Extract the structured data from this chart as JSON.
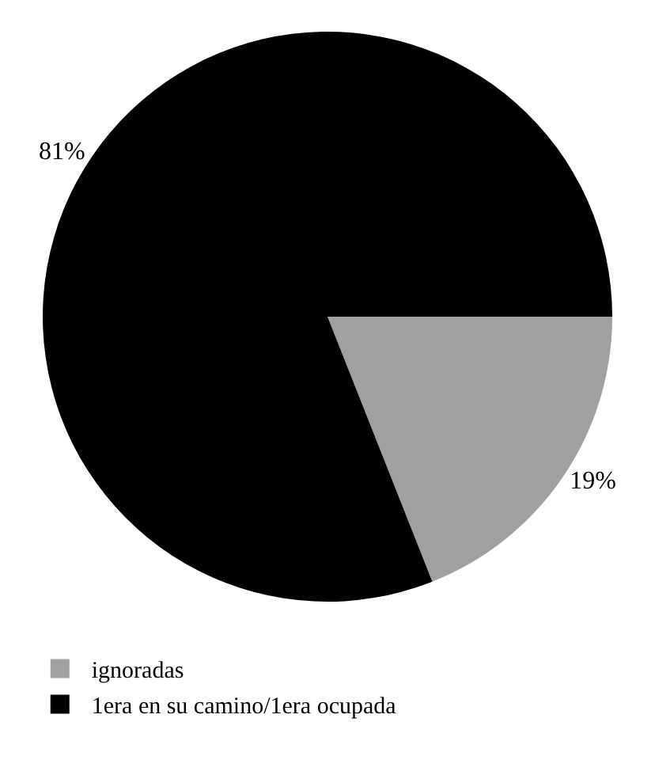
{
  "chart_data": {
    "type": "pie",
    "categories": [
      "ignoradas",
      "1era en su camino/1era ocupada"
    ],
    "values": [
      19,
      81
    ],
    "colors": [
      "#a0a0a0",
      "#000000"
    ],
    "value_labels": [
      "19%",
      "81%"
    ],
    "legend": "bottom left"
  }
}
